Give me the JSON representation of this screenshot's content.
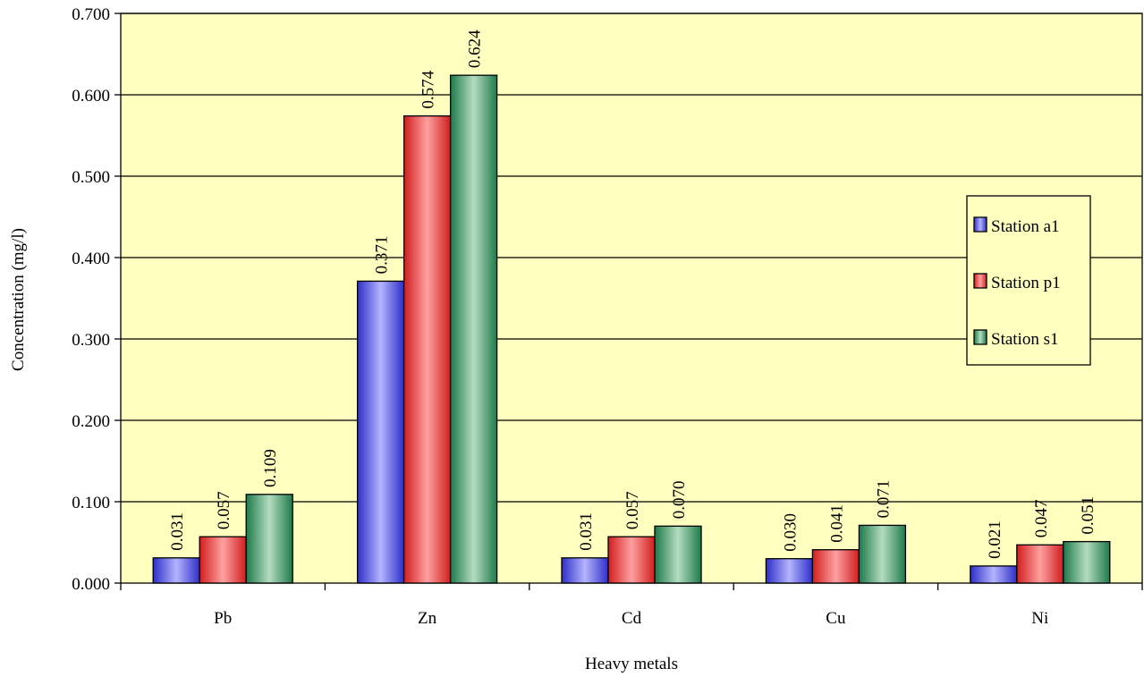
{
  "chart_data": {
    "type": "bar",
    "title": "",
    "xlabel": "Heavy metals",
    "ylabel": "Concentration (mg/l)",
    "categories": [
      "Pb",
      "Zn",
      "Cd",
      "Cu",
      "Ni"
    ],
    "ylim": [
      0,
      0.7
    ],
    "yticks": [
      "0.000",
      "0.100",
      "0.200",
      "0.300",
      "0.400",
      "0.500",
      "0.600",
      "0.700"
    ],
    "grid": true,
    "legend_position": "right",
    "plot_background": "#FFFFC0",
    "series": [
      {
        "name": "Station a1",
        "color": "#8F8FF2",
        "values": [
          0.031,
          0.371,
          0.031,
          0.03,
          0.021
        ],
        "labels": [
          "0.031",
          "0.371",
          "0.031",
          "0.030",
          "0.021"
        ]
      },
      {
        "name": "Station p1",
        "color": "#F07A7A",
        "values": [
          0.057,
          0.574,
          0.057,
          0.041,
          0.047
        ],
        "labels": [
          "0.057",
          "0.574",
          "0.057",
          "0.041",
          "0.047"
        ]
      },
      {
        "name": "Station s1",
        "color": "#7FBF9C",
        "values": [
          0.109,
          0.624,
          0.07,
          0.071,
          0.051
        ],
        "labels": [
          "0.109",
          "0.624",
          "0.070",
          "0.071",
          "0.051"
        ]
      }
    ]
  }
}
